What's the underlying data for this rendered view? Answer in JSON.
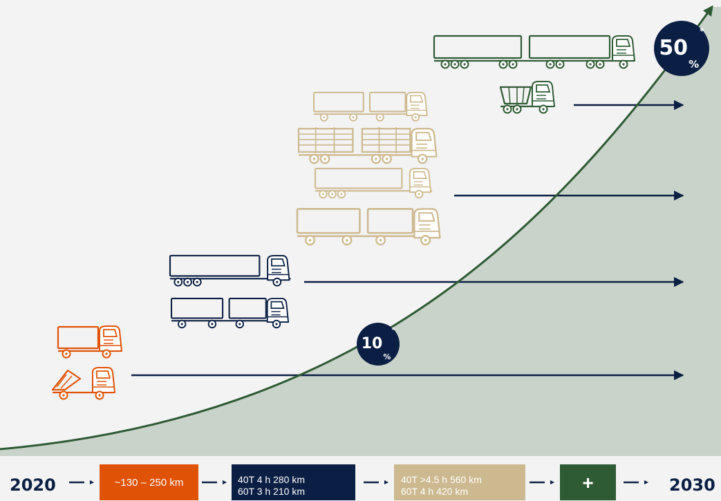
{
  "badges": {
    "high": {
      "value": "50",
      "unit": "%",
      "mark": "*"
    },
    "low": {
      "value": "10",
      "unit": "%",
      "mark": "*"
    }
  },
  "timeline": {
    "start_year": "2020",
    "end_year": "2030",
    "stages": [
      {
        "color": "#e05206",
        "lines": [
          "~130 – 250 km"
        ]
      },
      {
        "color": "#0b1f44",
        "lines": [
          "40T 4 h 280 km",
          "60T 3 h 210 km"
        ]
      },
      {
        "color": "#cdb98f",
        "lines": [
          "40T >4.5 h 560 km",
          "60T 4 h 420 km"
        ]
      },
      {
        "color": "#2e5a34",
        "lines": [
          "+"
        ]
      }
    ]
  },
  "colors": {
    "background": "#f3f3f3",
    "curve": "#2e5a34",
    "area_fill": "#c9d3c9",
    "navy": "#0b1f44",
    "orange": "#e05206",
    "tan": "#cdb98f",
    "green": "#2e5a34",
    "white": "#ffffff"
  },
  "icons": {
    "orange_group": [
      "box-truck-icon",
      "dump-truck-icon"
    ],
    "navy_group": [
      "tractor-semitrailer-icon",
      "truck-trailer-icon"
    ],
    "tan_group": [
      "truck-trailer-icon",
      "timber-truck-icon",
      "tractor-semitrailer-icon",
      "truck-trailer-icon"
    ],
    "green_group": [
      "long-combination-icon",
      "tipper-truck-icon"
    ]
  }
}
